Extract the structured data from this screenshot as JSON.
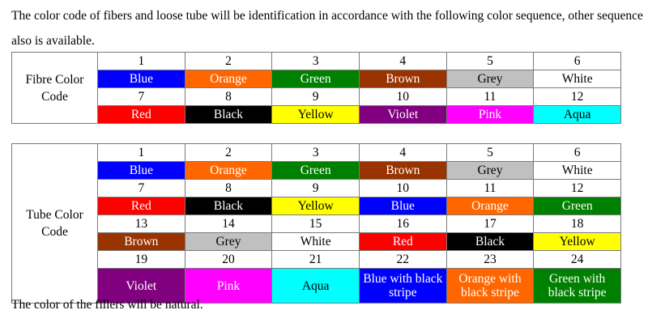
{
  "intro": "The color code of fibers and loose tube will be identification in accordance with the following color sequence, other sequence also is available.",
  "footer": "The color of the fillers will be natural.",
  "fibre_table": {
    "label_line1": "Fibre Color",
    "label_line2": "Code",
    "rows": [
      {
        "kind": "num",
        "cells": [
          {
            "text": "1"
          },
          {
            "text": "2"
          },
          {
            "text": "3"
          },
          {
            "text": "4"
          },
          {
            "text": "5"
          },
          {
            "text": "6"
          }
        ]
      },
      {
        "kind": "color",
        "cells": [
          {
            "text": "Blue",
            "bg": "#0000ff",
            "fg": "#ffffff"
          },
          {
            "text": "Orange",
            "bg": "#ff6600",
            "fg": "#ffffff"
          },
          {
            "text": "Green",
            "bg": "#008000",
            "fg": "#ffffff"
          },
          {
            "text": "Brown",
            "bg": "#993300",
            "fg": "#ffffff"
          },
          {
            "text": "Grey",
            "bg": "#c0c0c0",
            "fg": "#000000"
          },
          {
            "text": "White",
            "bg": "#ffffff",
            "fg": "#000000"
          }
        ]
      },
      {
        "kind": "num",
        "cells": [
          {
            "text": "7"
          },
          {
            "text": "8"
          },
          {
            "text": "9"
          },
          {
            "text": "10"
          },
          {
            "text": "11"
          },
          {
            "text": "12"
          }
        ]
      },
      {
        "kind": "color",
        "cells": [
          {
            "text": "Red",
            "bg": "#ff0000",
            "fg": "#ffffff"
          },
          {
            "text": "Black",
            "bg": "#000000",
            "fg": "#ffffff"
          },
          {
            "text": "Yellow",
            "bg": "#ffff00",
            "fg": "#000000"
          },
          {
            "text": "Violet",
            "bg": "#800080",
            "fg": "#ffffff"
          },
          {
            "text": "Pink",
            "bg": "#ff00ff",
            "fg": "#ffffff"
          },
          {
            "text": "Aqua",
            "bg": "#00ffff",
            "fg": "#000000"
          }
        ]
      }
    ]
  },
  "tube_table": {
    "label_line1": "Tube Color",
    "label_line2": "Code",
    "rows": [
      {
        "kind": "num",
        "cells": [
          {
            "text": "1"
          },
          {
            "text": "2"
          },
          {
            "text": "3"
          },
          {
            "text": "4"
          },
          {
            "text": "5"
          },
          {
            "text": "6"
          }
        ]
      },
      {
        "kind": "color",
        "cells": [
          {
            "text": "Blue",
            "bg": "#0000ff",
            "fg": "#ffffff"
          },
          {
            "text": "Orange",
            "bg": "#ff6600",
            "fg": "#ffffff"
          },
          {
            "text": "Green",
            "bg": "#008000",
            "fg": "#ffffff"
          },
          {
            "text": "Brown",
            "bg": "#993300",
            "fg": "#ffffff"
          },
          {
            "text": "Grey",
            "bg": "#c0c0c0",
            "fg": "#000000"
          },
          {
            "text": "White",
            "bg": "#ffffff",
            "fg": "#000000"
          }
        ]
      },
      {
        "kind": "num",
        "cells": [
          {
            "text": "7"
          },
          {
            "text": "8"
          },
          {
            "text": "9"
          },
          {
            "text": "10"
          },
          {
            "text": "11"
          },
          {
            "text": "12"
          }
        ]
      },
      {
        "kind": "color",
        "cells": [
          {
            "text": "Red",
            "bg": "#ff0000",
            "fg": "#ffffff"
          },
          {
            "text": "Black",
            "bg": "#000000",
            "fg": "#ffffff"
          },
          {
            "text": "Yellow",
            "bg": "#ffff00",
            "fg": "#000000"
          },
          {
            "text": "Blue",
            "bg": "#0000ff",
            "fg": "#ffffff"
          },
          {
            "text": "Orange",
            "bg": "#ff6600",
            "fg": "#ffffff"
          },
          {
            "text": "Green",
            "bg": "#008000",
            "fg": "#ffffff"
          }
        ]
      },
      {
        "kind": "num",
        "cells": [
          {
            "text": "13"
          },
          {
            "text": "14"
          },
          {
            "text": "15"
          },
          {
            "text": "16"
          },
          {
            "text": "17"
          },
          {
            "text": "18"
          }
        ]
      },
      {
        "kind": "color",
        "cells": [
          {
            "text": "Brown",
            "bg": "#993300",
            "fg": "#ffffff"
          },
          {
            "text": "Grey",
            "bg": "#c0c0c0",
            "fg": "#000000"
          },
          {
            "text": "White",
            "bg": "#ffffff",
            "fg": "#000000"
          },
          {
            "text": "Red",
            "bg": "#ff0000",
            "fg": "#ffffff"
          },
          {
            "text": "Black",
            "bg": "#000000",
            "fg": "#ffffff"
          },
          {
            "text": "Yellow",
            "bg": "#ffff00",
            "fg": "#000000"
          }
        ]
      },
      {
        "kind": "num",
        "cells": [
          {
            "text": "19"
          },
          {
            "text": "20"
          },
          {
            "text": "21"
          },
          {
            "text": "22"
          },
          {
            "text": "23"
          },
          {
            "text": "24"
          }
        ]
      },
      {
        "kind": "color",
        "tall": true,
        "cells": [
          {
            "text": "Violet",
            "bg": "#800080",
            "fg": "#ffffff"
          },
          {
            "text": "Pink",
            "bg": "#ff00ff",
            "fg": "#ffffff"
          },
          {
            "text": "Aqua",
            "bg": "#00ffff",
            "fg": "#000000"
          },
          {
            "text": "Blue with black stripe",
            "bg": "#0000ff",
            "fg": "#ffffff"
          },
          {
            "text": "Orange with black stripe",
            "bg": "#ff6600",
            "fg": "#ffffff"
          },
          {
            "text": "Green with black stripe",
            "bg": "#008000",
            "fg": "#ffffff"
          }
        ]
      }
    ]
  }
}
